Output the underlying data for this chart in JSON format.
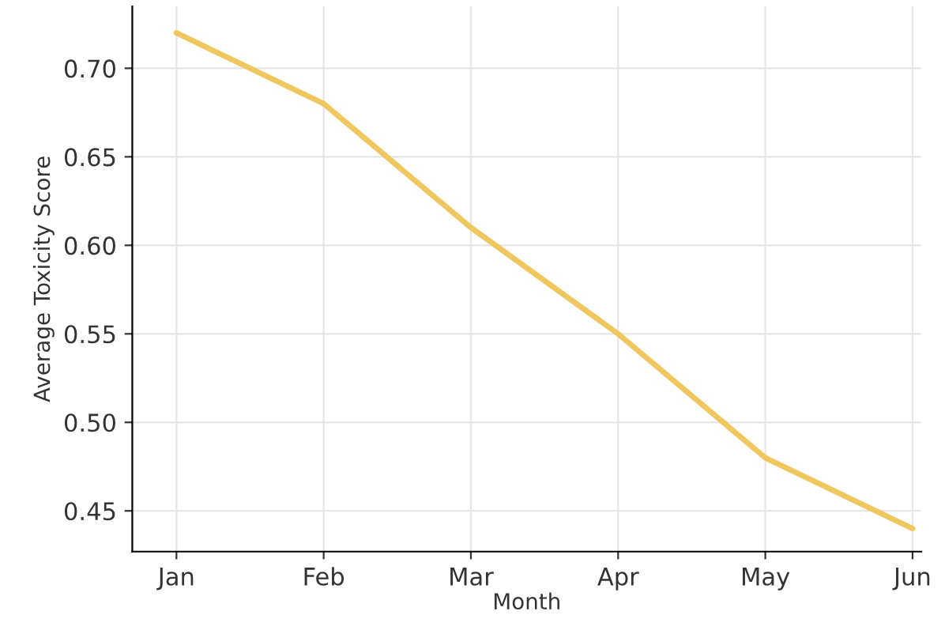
{
  "chart_data": {
    "type": "line",
    "xlabel": "Month",
    "ylabel": "Average Toxicity Score",
    "categories": [
      "Jan",
      "Feb",
      "Mar",
      "Apr",
      "May",
      "Jun"
    ],
    "series": [
      {
        "color": "#efc75e",
        "values": [
          0.72,
          0.68,
          0.61,
          0.55,
          0.48,
          0.44
        ]
      }
    ],
    "ylim": [
      0.427,
      0.735
    ],
    "yticks": [
      0.45,
      {
        "value": 0.5,
        "label": "0.50"
      },
      0.55,
      {
        "value": 0.6,
        "label": "0.60"
      },
      0.65,
      {
        "value": 0.7,
        "label": "0.70"
      }
    ],
    "grid": true
  }
}
